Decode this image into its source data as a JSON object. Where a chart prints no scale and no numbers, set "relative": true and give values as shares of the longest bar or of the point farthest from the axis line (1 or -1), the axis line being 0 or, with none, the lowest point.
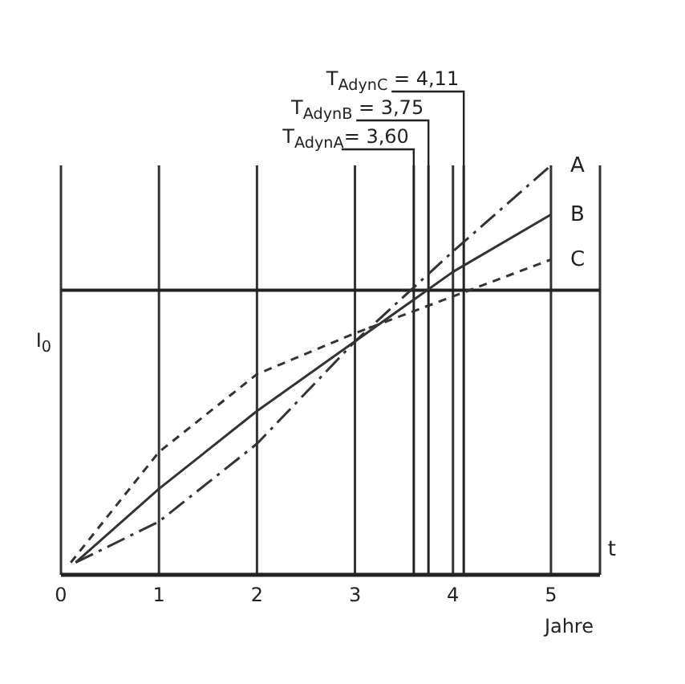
{
  "chart_data": {
    "type": "line",
    "relative": true,
    "xlabel": "Jahre",
    "annotations": [
      "t"
    ],
    "xlim": [
      0,
      5.5
    ],
    "xticks": [
      0,
      1,
      2,
      3,
      4,
      5
    ],
    "grid": "x",
    "marker": "none",
    "series": [
      {
        "name": "A",
        "color": "#333333",
        "line_style": "dashed",
        "x": [
          0.15,
          1,
          2,
          3,
          4,
          5
        ],
        "values": [
          0.03,
          0.13,
          0.32,
          0.57,
          0.79,
          1.0
        ]
      },
      {
        "name": "B",
        "color": "#333333",
        "line_style": "solid",
        "x": [
          0.15,
          1,
          2,
          3,
          4,
          5
        ],
        "values": [
          0.03,
          0.21,
          0.4,
          0.57,
          0.74,
          0.88
        ]
      },
      {
        "name": "C",
        "color": "#333333",
        "line_style": "dotted",
        "x": [
          0.1,
          1,
          2,
          3,
          4,
          5
        ],
        "values": [
          0.03,
          0.3,
          0.49,
          0.59,
          0.68,
          0.77
        ]
      }
    ],
    "ref_lines": [
      {
        "axis": "y",
        "value": 0.695,
        "label": "I$_{0}$"
      },
      {
        "axis": "x",
        "value": 3.6,
        "label": "T$_{AdynA}$= 3,60"
      },
      {
        "axis": "x",
        "value": 3.75,
        "label": "T$_{AdynB}$ = 3,75"
      },
      {
        "axis": "x",
        "value": 4.11,
        "label": "T$_{AdynC}$ = 4,11"
      }
    ]
  }
}
